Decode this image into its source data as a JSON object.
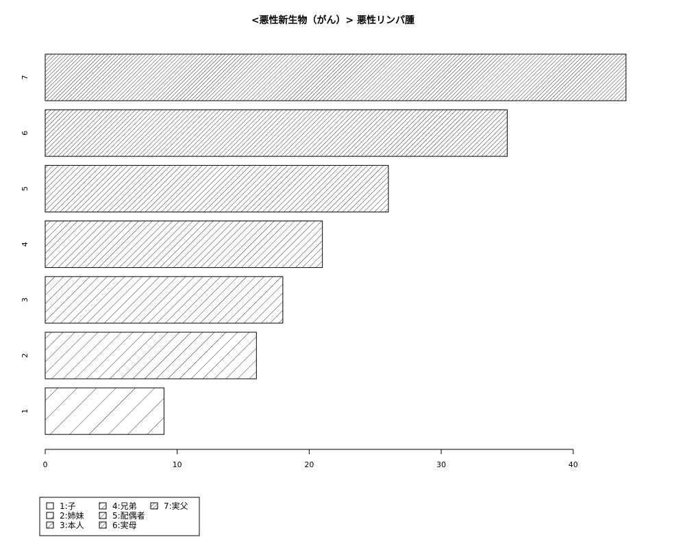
{
  "chart_data": {
    "type": "bar",
    "orientation": "horizontal",
    "title": "<悪性新生物（がん）> 悪性リンパ腫",
    "categories": [
      "1",
      "2",
      "3",
      "4",
      "5",
      "6",
      "7"
    ],
    "values": [
      9,
      16,
      18,
      21,
      26,
      35,
      44
    ],
    "xlim": [
      0,
      45
    ],
    "x_ticks": [
      0,
      10,
      20,
      30,
      40
    ],
    "xlabel": "",
    "ylabel": "",
    "grid": false,
    "fill": "diagonal hatching, density increasing with category",
    "bar_color": "#000000",
    "legend": {
      "placement": "bottom-left",
      "entries": [
        "1:子",
        "2:姉妹",
        "3:本人",
        "4:兄弟",
        "5:配偶者",
        "6:実母",
        "7:実父"
      ]
    }
  }
}
